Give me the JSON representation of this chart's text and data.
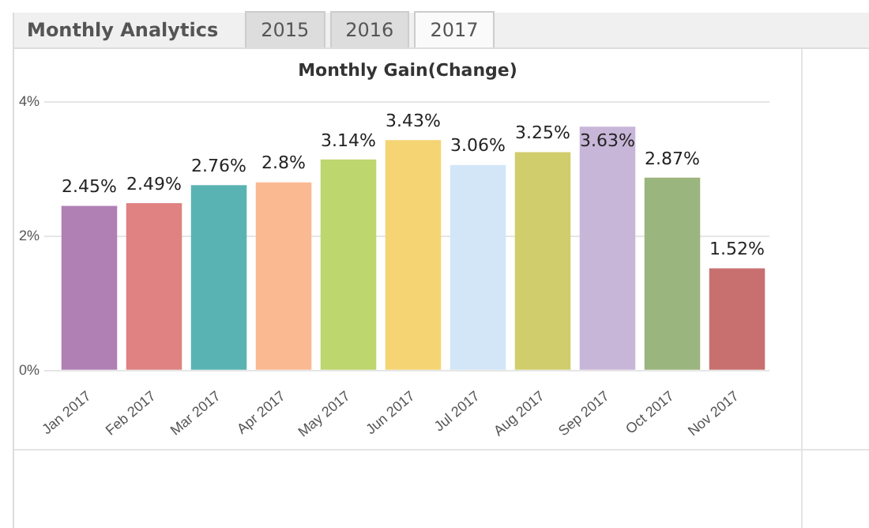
{
  "chart_data": {
    "type": "bar",
    "title": "Monthly Gain(Change)",
    "annotations": [
      "Monthly Analytics",
      "2015",
      "2016",
      "2017"
    ],
    "categories": [
      "Jan 2017",
      "Feb 2017",
      "Mar 2017",
      "Apr 2017",
      "May 2017",
      "Jun 2017",
      "Jul 2017",
      "Aug 2017",
      "Sep 2017",
      "Oct 2017",
      "Nov 2017"
    ],
    "values": [
      2.45,
      2.49,
      2.76,
      2.8,
      3.14,
      3.43,
      3.06,
      3.25,
      3.63,
      2.87,
      1.52
    ],
    "value_labels": [
      "2.45%",
      "2.49%",
      "2.76%",
      "2.8%",
      "3.14%",
      "3.43%",
      "3.06%",
      "3.25%",
      "3.63%",
      "2.87%",
      "1.52%"
    ],
    "colors": [
      "#b07fb4",
      "#e08282",
      "#5ab3b3",
      "#fbb992",
      "#bed66e",
      "#f5d473",
      "#d2e6f8",
      "#d0cd6c",
      "#c8b6d8",
      "#9bb57e",
      "#c87070"
    ],
    "ylim": [
      0,
      4
    ],
    "yticks": [
      {
        "value": 0,
        "label": "0%"
      },
      {
        "value": 2,
        "label": "2%"
      },
      {
        "value": 4,
        "label": "4%"
      }
    ],
    "grid": "y",
    "legend": false
  }
}
